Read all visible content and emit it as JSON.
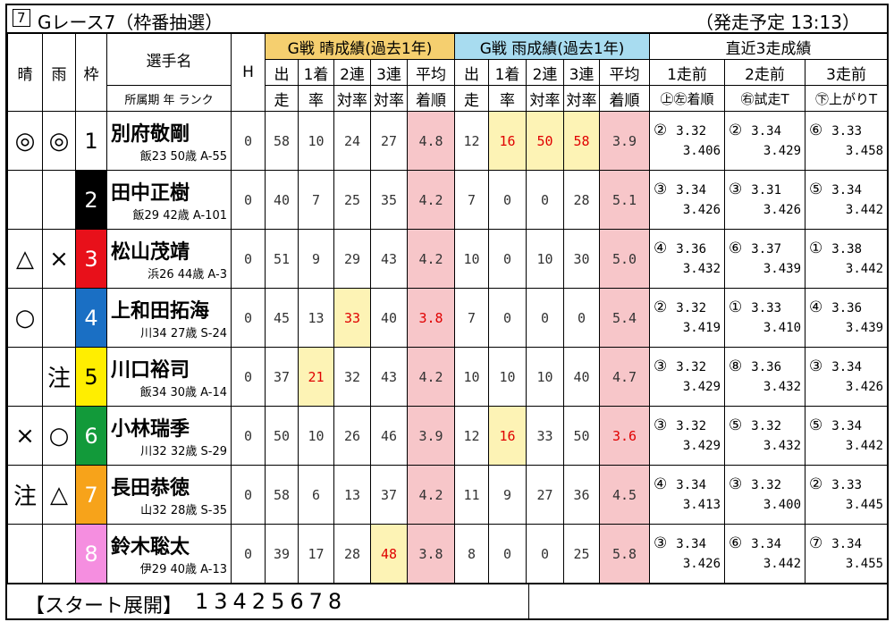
{
  "header": {
    "race_no": "7",
    "title": "Gレース7（枠番抽選）",
    "start_time": "（発走予定 13:13）"
  },
  "columns": {
    "sunny": "晴",
    "rain": "雨",
    "frame": "枠",
    "name": "選手名",
    "info": "所属期 年 ランク",
    "handicap": "H",
    "sunny_group": "G戦 晴成績(過去1年)",
    "rain_group": "G戦 雨成績(過去1年)",
    "stats": [
      [
        "出",
        "走"
      ],
      [
        "1着",
        "率"
      ],
      [
        "2連",
        "対率"
      ],
      [
        "3連",
        "対率"
      ],
      [
        "平均",
        "着順"
      ]
    ],
    "recent_group": "直近3走成績",
    "recent": [
      "1走前",
      "2走前",
      "3走前"
    ],
    "recent_sub": [
      "㊤㊧着順",
      "㊨試走T",
      "㊦上がりT"
    ]
  },
  "rows": [
    {
      "sunny": "◎",
      "rain": "◎",
      "frame": "1",
      "name": "別府敬剛",
      "info": "飯23 50歳 A-55",
      "handicap": "0",
      "sunny_stats": [
        "58",
        "10",
        "24",
        "27",
        "4.8"
      ],
      "rain_stats": [
        "12",
        "16",
        "50",
        "58",
        "3.9"
      ],
      "recent": [
        {
          "place": "②",
          "trial": "3.32",
          "last": "3.406"
        },
        {
          "place": "②",
          "trial": "3.34",
          "last": "3.429"
        },
        {
          "place": "⑥",
          "trial": "3.33",
          "last": "3.458"
        }
      ]
    },
    {
      "sunny": null,
      "rain": null,
      "frame": "2",
      "name": "田中正樹",
      "info": "飯29 42歳 A-101",
      "handicap": "0",
      "sunny_stats": [
        "40",
        "7",
        "25",
        "35",
        "4.2"
      ],
      "rain_stats": [
        "7",
        "0",
        "0",
        "28",
        "5.1"
      ],
      "recent": [
        {
          "place": "③",
          "trial": "3.34",
          "last": "3.426"
        },
        {
          "place": "③",
          "trial": "3.31",
          "last": "3.426"
        },
        {
          "place": "⑤",
          "trial": "3.34",
          "last": "3.442"
        }
      ]
    },
    {
      "sunny": "△",
      "rain": "×",
      "frame": "3",
      "name": "松山茂靖",
      "info": "浜26 44歳 A-3",
      "handicap": "0",
      "sunny_stats": [
        "51",
        "9",
        "29",
        "43",
        "4.2"
      ],
      "rain_stats": [
        "10",
        "0",
        "10",
        "30",
        "5.0"
      ],
      "recent": [
        {
          "place": "④",
          "trial": "3.36",
          "last": "3.432"
        },
        {
          "place": "⑥",
          "trial": "3.37",
          "last": "3.439"
        },
        {
          "place": "①",
          "trial": "3.38",
          "last": "3.442"
        }
      ]
    },
    {
      "sunny": "○",
      "rain": null,
      "frame": "4",
      "name": "上和田拓海",
      "info": "川34 27歳 S-24",
      "handicap": "0",
      "sunny_stats": [
        "45",
        "13",
        "33",
        "40",
        "3.8"
      ],
      "rain_stats": [
        "7",
        "0",
        "0",
        "0",
        "5.4"
      ],
      "recent": [
        {
          "place": "②",
          "trial": "3.32",
          "last": "3.419"
        },
        {
          "place": "①",
          "trial": "3.33",
          "last": "3.410"
        },
        {
          "place": "④",
          "trial": "3.36",
          "last": "3.439"
        }
      ]
    },
    {
      "sunny": null,
      "rain": "注",
      "frame": "5",
      "name": "川口裕司",
      "info": "飯34 30歳 A-14",
      "handicap": "0",
      "sunny_stats": [
        "37",
        "21",
        "32",
        "43",
        "4.2"
      ],
      "rain_stats": [
        "10",
        "10",
        "10",
        "40",
        "4.7"
      ],
      "recent": [
        {
          "place": "③",
          "trial": "3.32",
          "last": "3.429"
        },
        {
          "place": "⑧",
          "trial": "3.36",
          "last": "3.432"
        },
        {
          "place": "③",
          "trial": "3.34",
          "last": "3.426"
        }
      ]
    },
    {
      "sunny": "×",
      "rain": "○",
      "frame": "6",
      "name": "小林瑞季",
      "info": "川32 32歳 S-29",
      "handicap": "0",
      "sunny_stats": [
        "50",
        "10",
        "26",
        "46",
        "3.9"
      ],
      "rain_stats": [
        "12",
        "16",
        "33",
        "50",
        "3.6"
      ],
      "recent": [
        {
          "place": "③",
          "trial": "3.32",
          "last": "3.429"
        },
        {
          "place": "⑤",
          "trial": "3.32",
          "last": "3.432"
        },
        {
          "place": "⑤",
          "trial": "3.34",
          "last": "3.442"
        }
      ]
    },
    {
      "sunny": "注",
      "rain": "△",
      "frame": "7",
      "name": "長田恭徳",
      "info": "山32 28歳 S-35",
      "handicap": "0",
      "sunny_stats": [
        "58",
        "6",
        "13",
        "37",
        "4.2"
      ],
      "rain_stats": [
        "11",
        "9",
        "27",
        "36",
        "4.5"
      ],
      "recent": [
        {
          "place": "④",
          "trial": "3.34",
          "last": "3.413"
        },
        {
          "place": "③",
          "trial": "3.32",
          "last": "3.400"
        },
        {
          "place": "②",
          "trial": "3.33",
          "last": "3.445"
        }
      ]
    },
    {
      "sunny": null,
      "rain": null,
      "frame": "8",
      "name": "鈴木聡太",
      "info": "伊29 40歳 A-13",
      "handicap": "0",
      "sunny_stats": [
        "39",
        "17",
        "28",
        "48",
        "3.8"
      ],
      "rain_stats": [
        "8",
        "0",
        "0",
        "25",
        "5.8"
      ],
      "recent": [
        {
          "place": "③",
          "trial": "3.34",
          "last": "3.426"
        },
        {
          "place": "⑥",
          "trial": "3.34",
          "last": "3.442"
        },
        {
          "place": "⑦",
          "trial": "3.34",
          "last": "3.455"
        }
      ]
    }
  ],
  "footer": {
    "label": "【スタート展開】",
    "order": "13425678"
  }
}
